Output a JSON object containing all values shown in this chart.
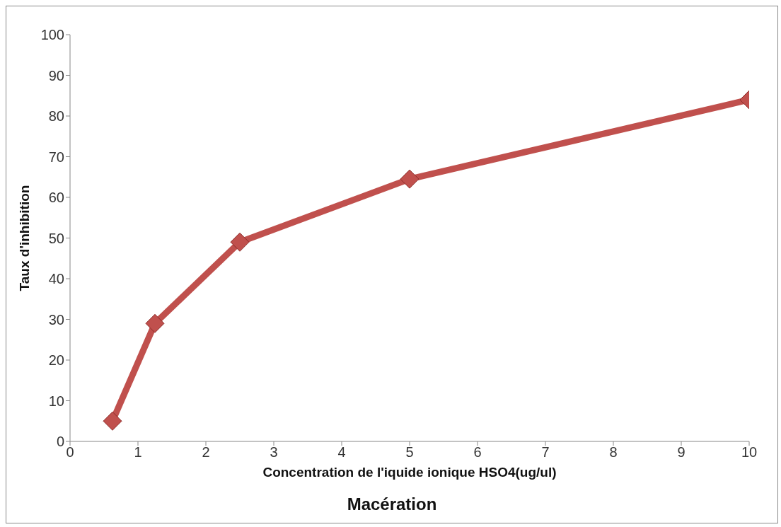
{
  "chart_data": {
    "type": "line",
    "title": "Macération",
    "xlabel": "Concentration de l'iquide ionique HSO4(ug/ul)",
    "ylabel": "Taux d'inhibition",
    "x": [
      0.625,
      1.25,
      2.5,
      5,
      10
    ],
    "series": [
      {
        "color": "#c0504d",
        "values": [
          5,
          29,
          49,
          64.5,
          84
        ]
      }
    ],
    "xlim": [
      0,
      10
    ],
    "xticks": [
      0,
      1,
      2,
      3,
      4,
      5,
      6,
      7,
      8,
      9,
      10
    ],
    "ylim": [
      0,
      100
    ],
    "yticks": [
      0,
      10,
      20,
      30,
      40,
      50,
      60,
      70,
      80,
      90,
      100
    ],
    "grid": false,
    "legend": false,
    "marker": "diamond",
    "line_style": "solid"
  }
}
